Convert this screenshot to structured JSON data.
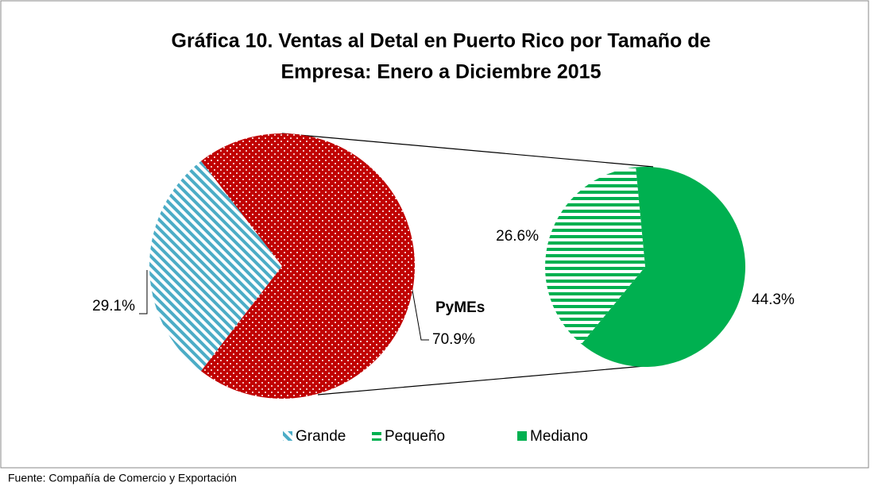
{
  "chart_data": {
    "type": "pie-of-pie",
    "title": "Gráfica 10.  Ventas al Detal en Puerto Rico por Tamaño de",
    "title_line2": "Empresa: Enero a Diciembre 2015",
    "categories": [
      "Grande",
      "Pequeño",
      "Mediano"
    ],
    "values": [
      29.1,
      26.6,
      44.3
    ],
    "value_labels": [
      "29.1%",
      "26.6%",
      "44.3%"
    ],
    "colors": [
      "#4bacc6",
      "#00b050",
      "#00b050"
    ],
    "patterns": [
      "diagonal",
      "horizontal",
      "solid"
    ],
    "other_label": "PyMEs",
    "other_value": 70.9,
    "other_value_label": "70.9%",
    "other_color": "#c00000",
    "other_pattern": "dots",
    "source": "Fuente:  Compañía de Comercio y Exportación"
  }
}
